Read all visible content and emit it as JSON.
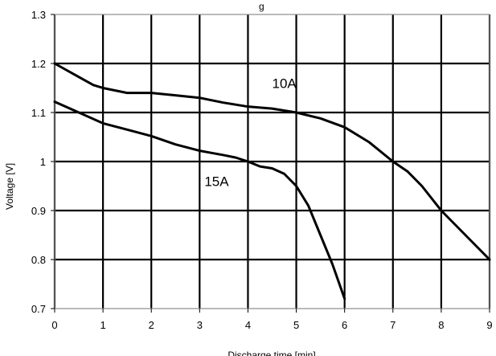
{
  "chart_data": {
    "type": "line",
    "title": "g",
    "xlabel": "Discharge time [min]",
    "ylabel": "Voltage [V]",
    "xlim": [
      0,
      9
    ],
    "ylim": [
      0.7,
      1.3
    ],
    "xticks": [
      "0",
      "1",
      "2",
      "3",
      "4",
      "5",
      "6",
      "7",
      "8",
      "9"
    ],
    "yticks": [
      "0.7",
      "0.8",
      "0.9",
      "1",
      "1.1",
      "1.2",
      "1.3"
    ],
    "grid": true,
    "series": [
      {
        "name": "10A",
        "x": [
          0,
          0.4,
          0.8,
          1.0,
          1.5,
          2.0,
          2.5,
          3.0,
          3.5,
          4.0,
          4.5,
          5.0,
          5.5,
          6.0,
          6.5,
          7.0,
          7.3,
          7.6,
          8.0,
          8.5,
          9.0
        ],
        "y": [
          1.2,
          1.178,
          1.156,
          1.15,
          1.14,
          1.14,
          1.135,
          1.13,
          1.12,
          1.112,
          1.108,
          1.1,
          1.088,
          1.07,
          1.04,
          1.0,
          0.98,
          0.95,
          0.9,
          0.85,
          0.8
        ]
      },
      {
        "name": "15A",
        "x": [
          0,
          0.5,
          1.0,
          1.5,
          2.0,
          2.5,
          3.0,
          3.5,
          3.75,
          4.0,
          4.25,
          4.5,
          4.75,
          5.0,
          5.25,
          5.5,
          5.75,
          6.0
        ],
        "y": [
          1.122,
          1.1,
          1.078,
          1.065,
          1.052,
          1.035,
          1.022,
          1.013,
          1.008,
          1.0,
          0.99,
          0.986,
          0.975,
          0.95,
          0.91,
          0.85,
          0.79,
          0.72
        ]
      }
    ],
    "annotations": [
      {
        "text": "10A",
        "x": 4.5,
        "y": 1.15
      },
      {
        "text": "15A",
        "x": 3.1,
        "y": 0.95
      }
    ],
    "colors": {
      "series": "#000000",
      "grid": "#000000",
      "frame": "#8c8c8c",
      "background": "#ffffff"
    }
  }
}
